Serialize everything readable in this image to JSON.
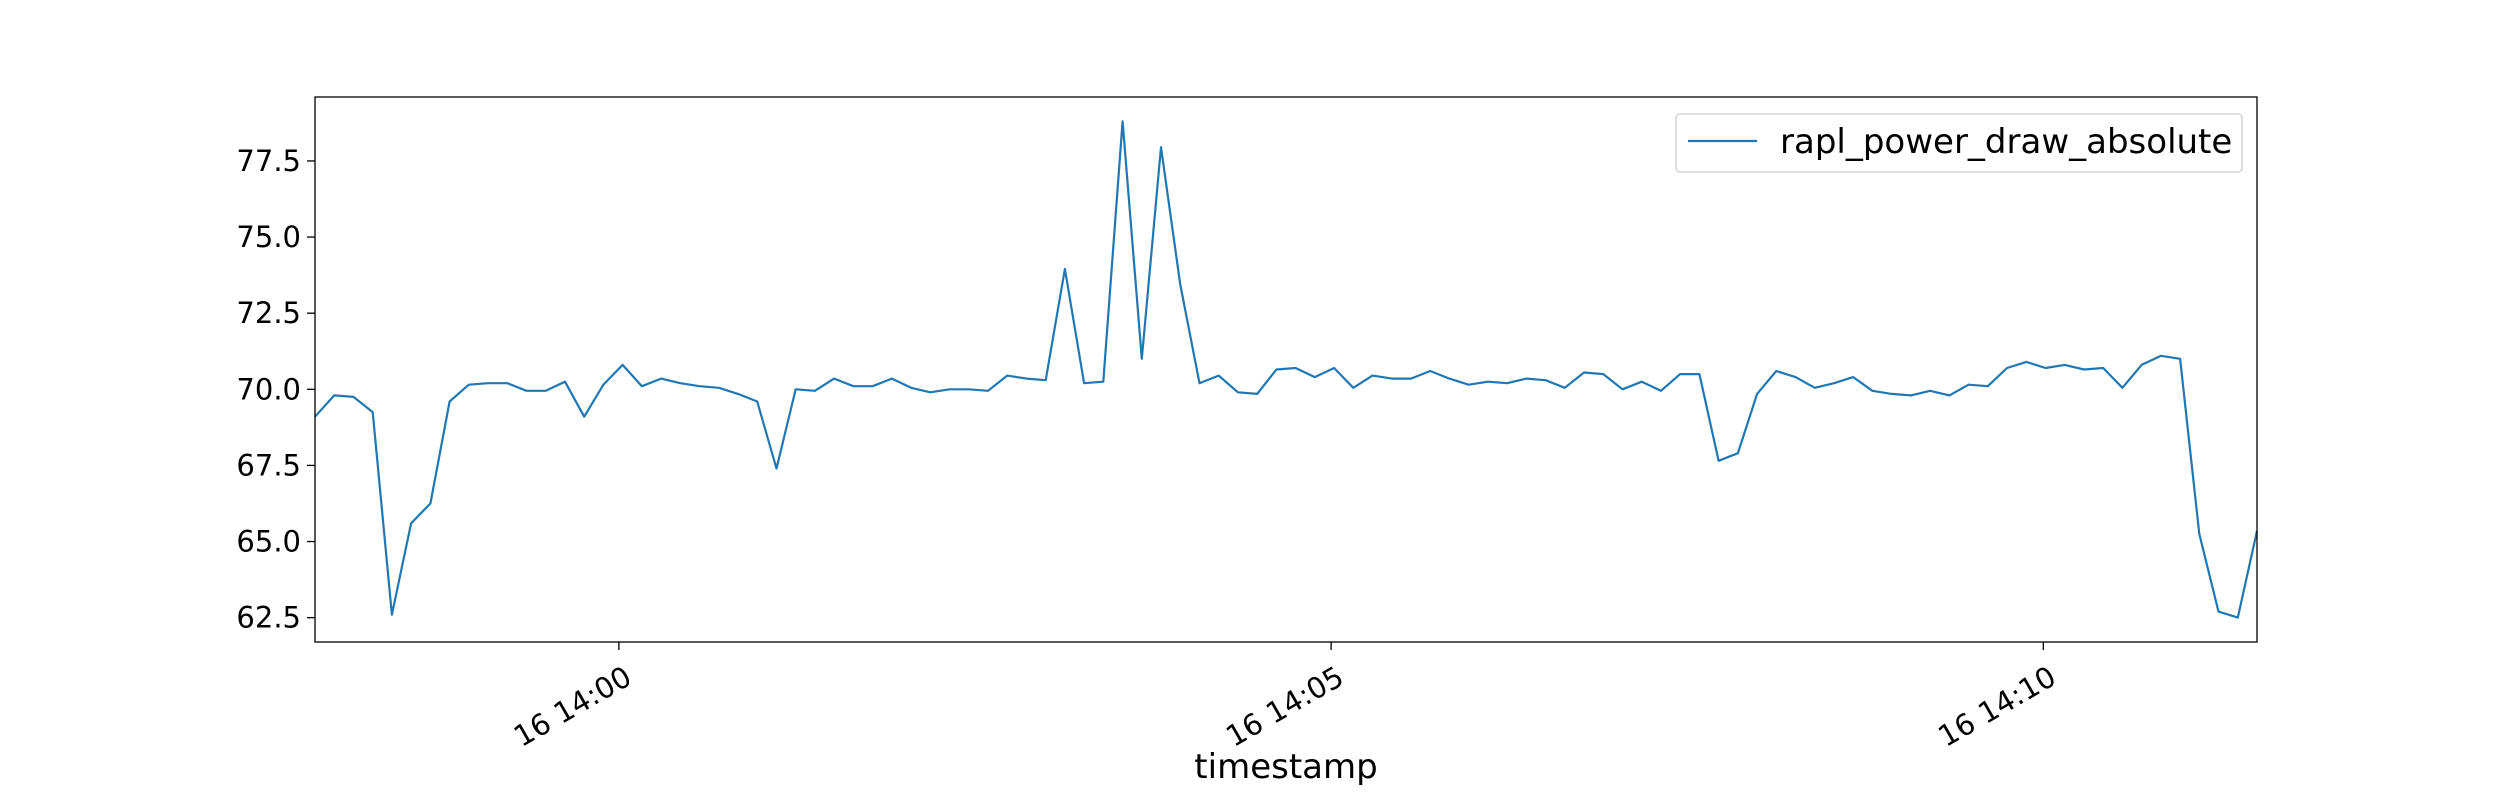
{
  "chart_data": {
    "type": "line",
    "title": "",
    "xlabel": "timestamp",
    "ylabel": "",
    "x_start": "16 13:57:52",
    "x_end": "16 14:11:30",
    "xlim": [
      "16 13:57:52",
      "16 14:11:30"
    ],
    "ylim": [
      61.7,
      79.6
    ],
    "yticks": [
      62.5,
      65.0,
      67.5,
      70.0,
      72.5,
      75.0,
      77.5
    ],
    "ytick_labels": [
      "62.5",
      "65.0",
      "67.5",
      "70.0",
      "72.5",
      "75.0",
      "77.5"
    ],
    "xticks": [
      "16 14:00",
      "16 14:05",
      "16 14:10"
    ],
    "legend_position": "top-right",
    "grid": false,
    "series": [
      {
        "name": "rapl_power_draw_absolute",
        "color": "#1f77b4",
        "values": [
          69.1,
          69.8,
          69.75,
          69.25,
          62.6,
          65.6,
          66.25,
          69.6,
          70.15,
          70.2,
          70.2,
          69.95,
          69.95,
          70.25,
          69.1,
          70.15,
          70.8,
          70.1,
          70.35,
          70.2,
          70.1,
          70.05,
          69.85,
          69.6,
          67.4,
          70.0,
          69.95,
          70.35,
          70.1,
          70.1,
          70.35,
          70.05,
          69.9,
          70.0,
          70.0,
          69.95,
          70.45,
          70.35,
          70.3,
          73.95,
          70.2,
          70.25,
          78.8,
          71.0,
          77.95,
          73.45,
          70.2,
          70.45,
          69.9,
          69.85,
          70.65,
          70.7,
          70.4,
          70.7,
          70.05,
          70.45,
          70.35,
          70.35,
          70.6,
          70.35,
          70.15,
          70.25,
          70.2,
          70.35,
          70.3,
          70.05,
          70.55,
          70.5,
          70.0,
          70.25,
          69.95,
          70.5,
          70.5,
          67.65,
          67.9,
          69.85,
          70.6,
          70.4,
          70.05,
          70.2,
          70.4,
          69.95,
          69.85,
          69.8,
          69.95,
          69.8,
          70.15,
          70.1,
          70.7,
          70.9,
          70.7,
          70.8,
          70.65,
          70.7,
          70.05,
          70.8,
          71.1,
          71.0,
          65.25,
          62.7,
          62.5,
          65.35
        ]
      }
    ]
  }
}
